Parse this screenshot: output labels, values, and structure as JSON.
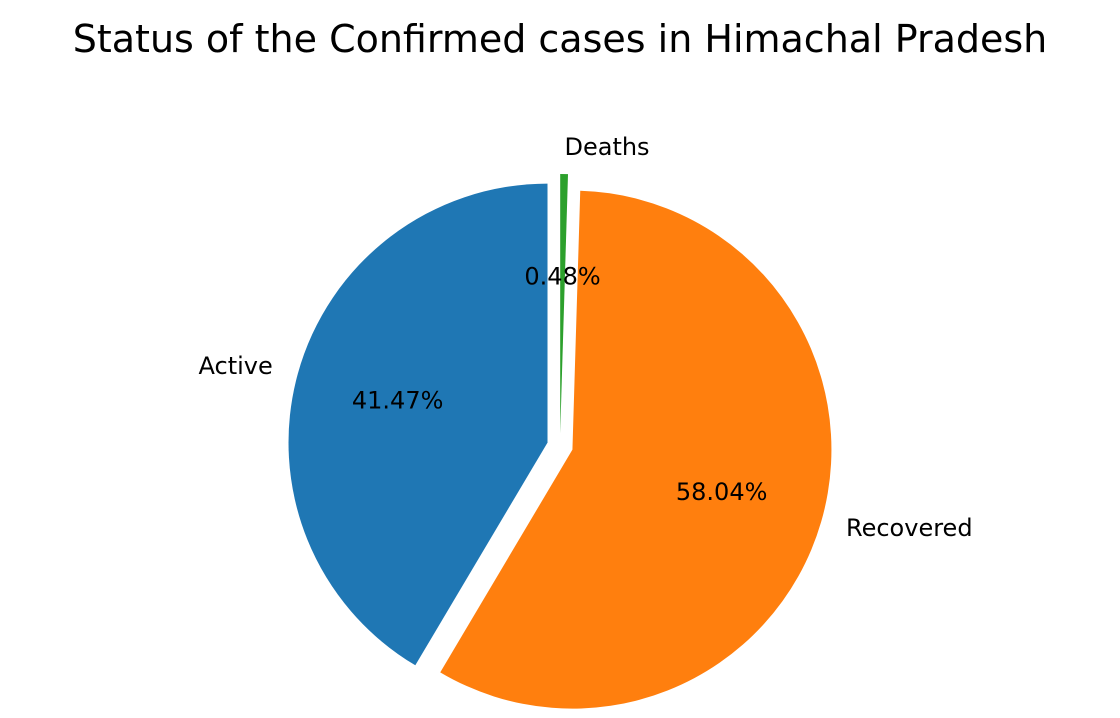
{
  "chart_data": {
    "type": "pie",
    "title": "Status of the  Confirmed cases in Himachal Pradesh",
    "start_angle_deg": 90,
    "direction": "counterclockwise",
    "slices": [
      {
        "label": "Active",
        "value": 41.47,
        "pct_label": "41.47%",
        "color": "#1f77b4",
        "explode": 0.05
      },
      {
        "label": "Recovered",
        "value": 58.04,
        "pct_label": "58.04%",
        "color": "#ff7f0e",
        "explode": 0.05
      },
      {
        "label": "Deaths",
        "value": 0.48,
        "pct_label": "0.48%",
        "color": "#2ca02c",
        "explode": 0.05
      }
    ]
  }
}
